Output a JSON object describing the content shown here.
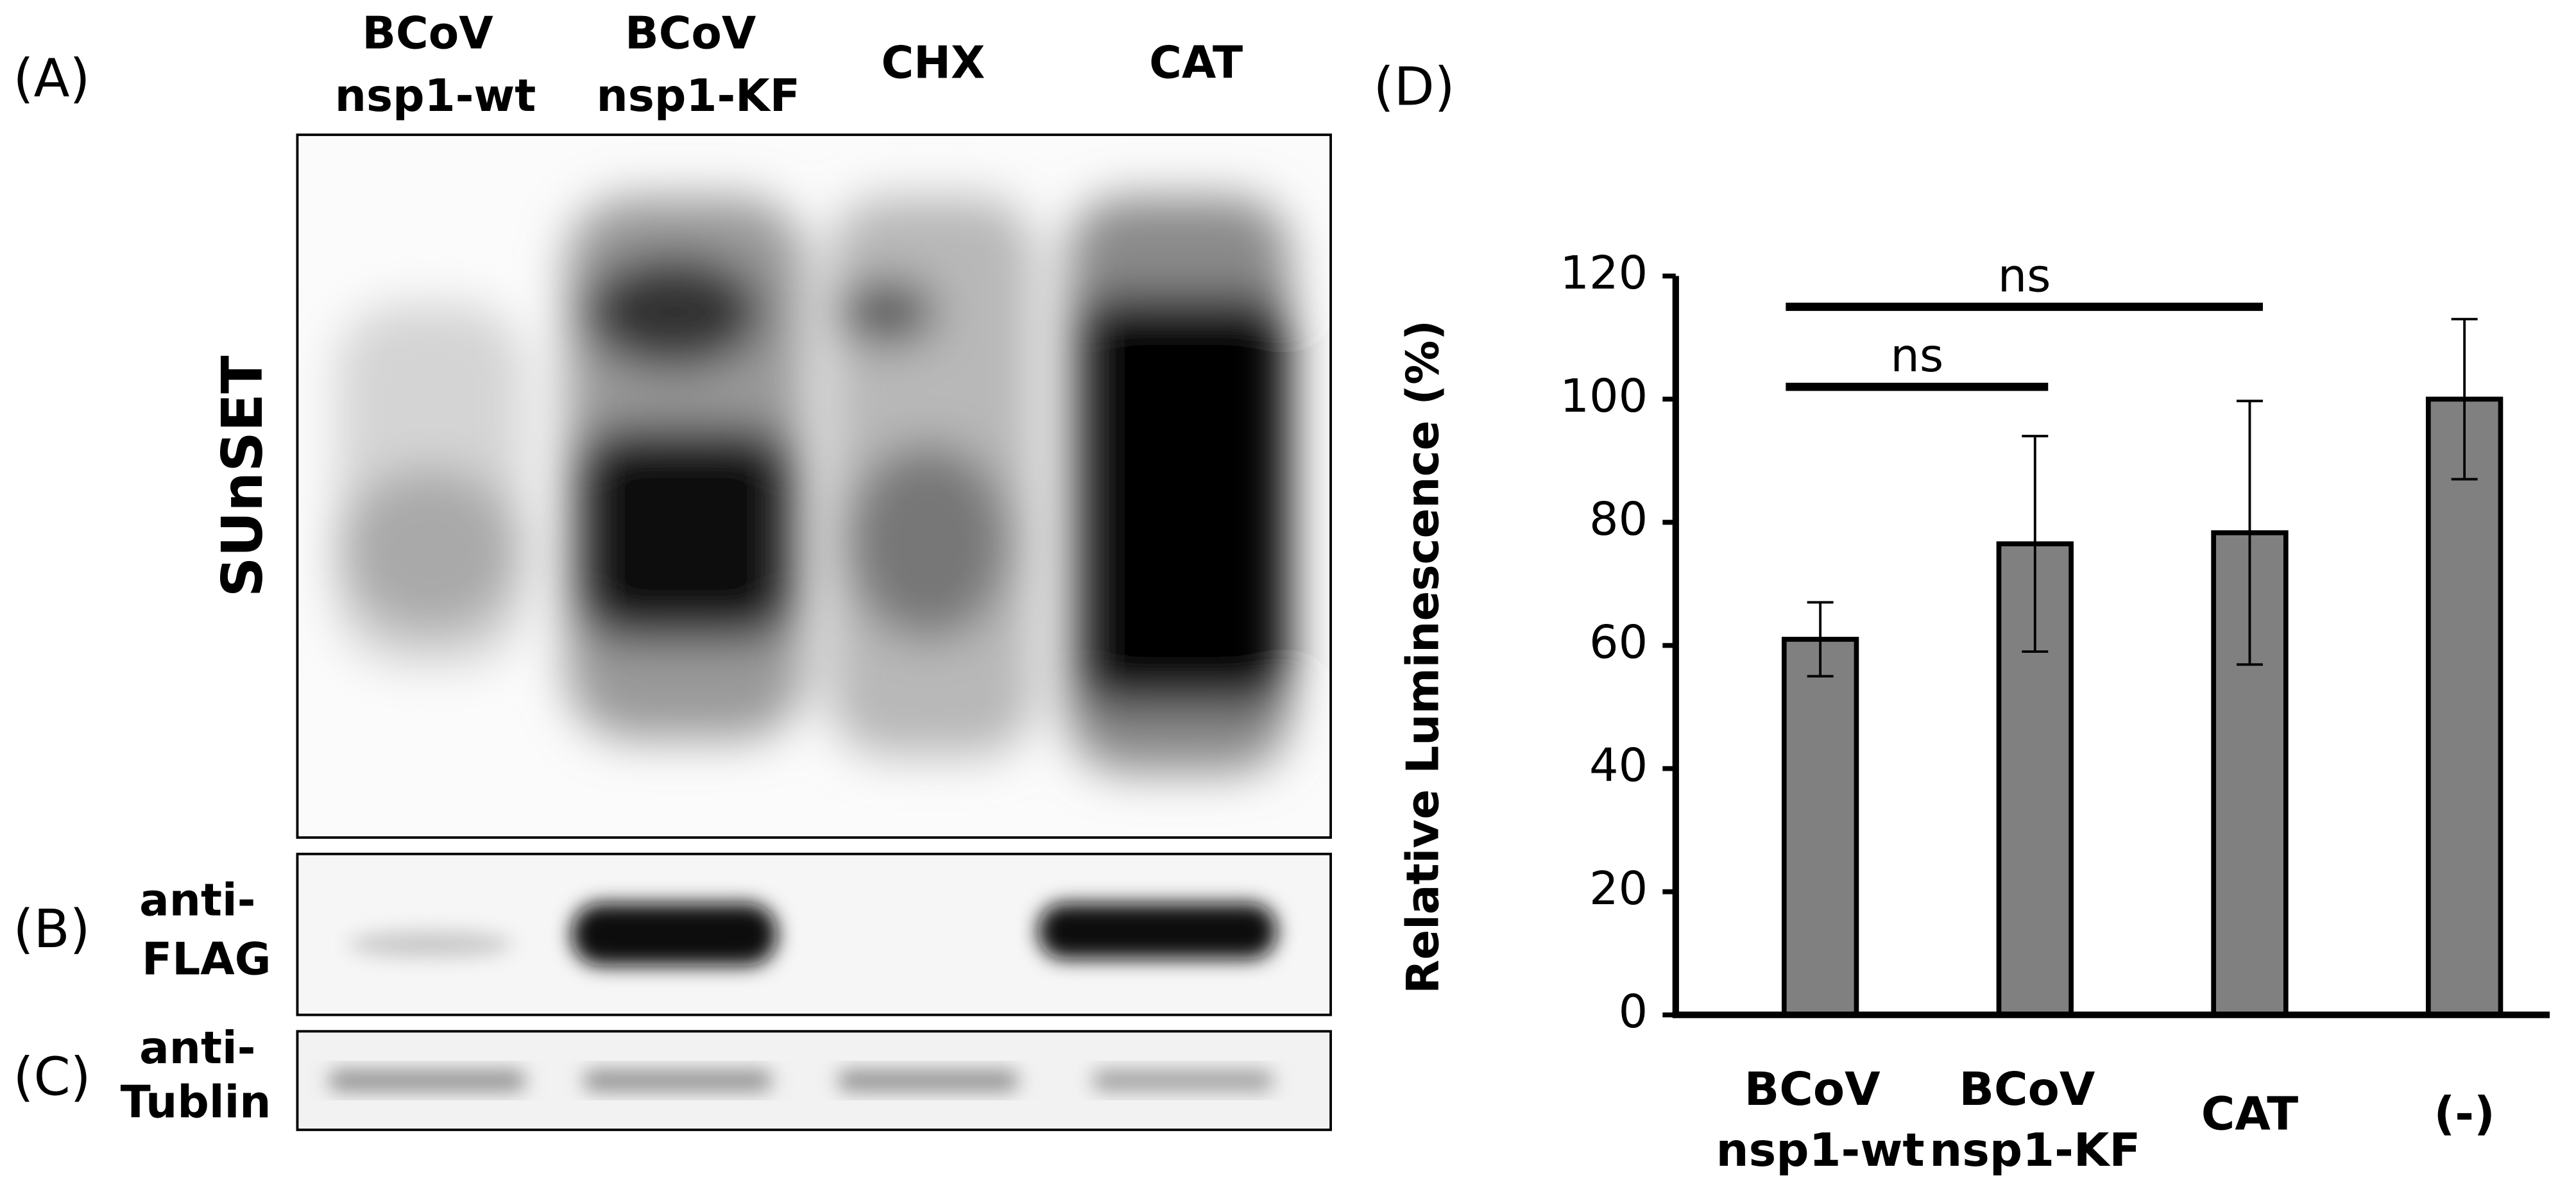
{
  "panels": {
    "a": "(A)",
    "b": "(B)",
    "c": "(C)",
    "d": "(D)"
  },
  "blot": {
    "lanes": [
      "BCoV nsp1-wt",
      "BCoV nsp1-KF",
      "CHX",
      "CAT"
    ],
    "rows": [
      "SUnSET",
      "anti- FLAG",
      "anti- Tublin"
    ]
  },
  "chart_data": {
    "type": "bar",
    "ylabel": "Relative Luminescence (%)",
    "categories": [
      "BCoV nsp1-wt",
      "BCoV nsp1-KF",
      "CAT",
      "(-)"
    ],
    "values": [
      61,
      76.5,
      78.3,
      100
    ],
    "errors": [
      6,
      17.5,
      21.4,
      13
    ],
    "color": "#808080",
    "ylim": [
      0,
      120
    ],
    "yticks": [
      0,
      20,
      40,
      60,
      80,
      100,
      120
    ],
    "annotations": [
      {
        "text": "ns",
        "from": 0,
        "to": 2,
        "y": 115
      },
      {
        "text": "ns",
        "from": 0,
        "to": 1,
        "y": 102
      }
    ]
  }
}
